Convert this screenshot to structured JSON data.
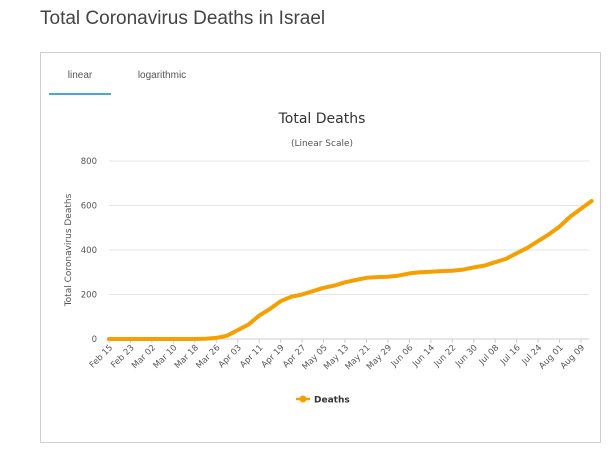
{
  "page": {
    "title": "Total Coronavirus Deaths in Israel"
  },
  "tabs": [
    {
      "label": "linear",
      "active": true
    },
    {
      "label": "logarithmic",
      "active": false
    }
  ],
  "colors": {
    "series": "#f5a000",
    "tab_underline": "#4aa8d8",
    "grid": "#e6e6e6"
  },
  "legend": {
    "position": "bottom-center",
    "icon": "line-dot-legend-icon"
  },
  "chart_data": {
    "type": "line",
    "title": "Total Deaths",
    "subtitle": "(Linear Scale)",
    "xlabel": "",
    "ylabel": "Total Coronavirus Deaths",
    "ylim": [
      0,
      800
    ],
    "yticks": [
      0,
      200,
      400,
      600,
      800
    ],
    "grid": true,
    "x_tick_labels": [
      "Feb 15",
      "Feb 23",
      "Mar 02",
      "Mar 10",
      "Mar 18",
      "Mar 26",
      "Apr 03",
      "Apr 11",
      "Apr 19",
      "Apr 27",
      "May 05",
      "May 13",
      "May 21",
      "May 29",
      "Jun 06",
      "Jun 14",
      "Jun 22",
      "Jun 30",
      "Jul 08",
      "Jul 16",
      "Jul 24",
      "Aug 01",
      "Aug 09"
    ],
    "x": [
      "Feb 15",
      "Mar 18",
      "Mar 22",
      "Mar 26",
      "Mar 30",
      "Apr 03",
      "Apr 07",
      "Apr 11",
      "Apr 15",
      "Apr 19",
      "Apr 23",
      "Apr 27",
      "May 01",
      "May 05",
      "May 09",
      "May 13",
      "May 17",
      "May 21",
      "May 25",
      "May 29",
      "Jun 02",
      "Jun 06",
      "Jun 10",
      "Jun 14",
      "Jun 18",
      "Jun 22",
      "Jun 26",
      "Jun 30",
      "Jul 04",
      "Jul 08",
      "Jul 12",
      "Jul 16",
      "Jul 20",
      "Jul 24",
      "Jul 28",
      "Aug 01",
      "Aug 05",
      "Aug 09",
      "Aug 13"
    ],
    "series": [
      {
        "name": "Deaths",
        "values": [
          0,
          0,
          1,
          5,
          15,
          40,
          65,
          105,
          135,
          170,
          190,
          200,
          215,
          230,
          240,
          255,
          265,
          275,
          278,
          280,
          285,
          295,
          300,
          302,
          305,
          307,
          312,
          322,
          330,
          345,
          360,
          385,
          410,
          440,
          470,
          505,
          550,
          585,
          620
        ]
      }
    ]
  }
}
